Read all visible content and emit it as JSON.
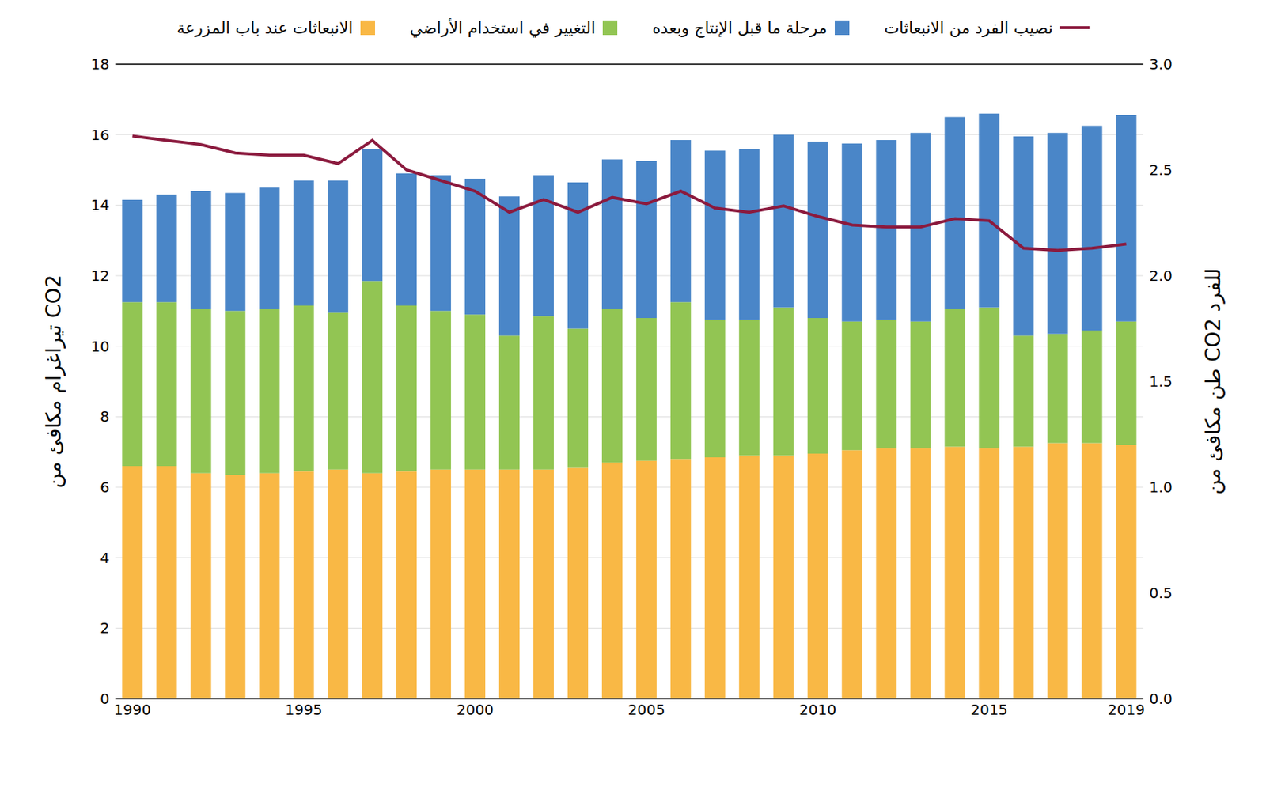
{
  "chart_data": {
    "type": "bar",
    "stacked": true,
    "grid": true,
    "legend": "top",
    "ylabel": "تيراغرام مكافئ من CO2",
    "y2label": "طن مكافئ من CO2 للفرد",
    "categories": [
      "1990",
      null,
      null,
      null,
      null,
      "1995",
      null,
      null,
      null,
      null,
      "2000",
      null,
      null,
      null,
      null,
      "2005",
      null,
      null,
      null,
      null,
      "2010",
      null,
      null,
      null,
      null,
      "2015",
      null,
      null,
      null,
      "2019"
    ],
    "ylim": [
      0,
      18
    ],
    "yticks": [
      0,
      2,
      4,
      6,
      8,
      10,
      12,
      14,
      16,
      18
    ],
    "y2lim": [
      0,
      3
    ],
    "y2ticks": [
      {
        "value": 0,
        "label": "0.0"
      },
      0.5,
      {
        "value": 1,
        "label": "1.0"
      },
      1.5,
      {
        "value": 2,
        "label": "2.0"
      },
      2.5,
      {
        "value": 3,
        "label": "3.0"
      }
    ],
    "series": [
      {
        "name": "الانبعاثات عند باب المزرعة",
        "type": "bar",
        "color": "#F9B845",
        "values": [
          6.6,
          6.6,
          6.4,
          6.35,
          6.4,
          6.45,
          6.5,
          6.4,
          6.45,
          6.5,
          6.5,
          6.5,
          6.5,
          6.55,
          6.7,
          6.75,
          6.8,
          6.85,
          6.9,
          6.9,
          6.95,
          7.05,
          7.1,
          7.1,
          7.15,
          7.1,
          7.15,
          7.25,
          7.25,
          7.2
        ]
      },
      {
        "name": "التغيير في استخدام الأراضي",
        "type": "bar",
        "color": "#92C553",
        "values": [
          4.65,
          4.65,
          4.65,
          4.65,
          4.65,
          4.7,
          4.45,
          5.45,
          4.7,
          4.5,
          4.4,
          3.8,
          4.35,
          3.95,
          4.35,
          4.05,
          4.45,
          3.9,
          3.85,
          4.2,
          3.85,
          3.65,
          3.65,
          3.6,
          3.9,
          4.0,
          3.15,
          3.1,
          3.2,
          3.5
        ]
      },
      {
        "name": "مرحلة ما قبل الإنتاج وبعده",
        "type": "bar",
        "color": "#4A86C8",
        "values": [
          2.9,
          3.05,
          3.35,
          3.35,
          3.45,
          3.55,
          3.75,
          3.75,
          3.75,
          3.85,
          3.85,
          3.95,
          4.0,
          4.15,
          4.25,
          4.45,
          4.6,
          4.8,
          4.85,
          4.9,
          5.0,
          5.05,
          5.1,
          5.35,
          5.45,
          5.5,
          5.65,
          5.7,
          5.8,
          5.85
        ]
      },
      {
        "name": "نصيب الفرد من الانبعاثات",
        "type": "line",
        "axis": "y2",
        "color": "#8B1A3E",
        "values": [
          2.66,
          2.64,
          2.62,
          2.58,
          2.57,
          2.57,
          2.53,
          2.64,
          2.5,
          2.45,
          2.4,
          2.3,
          2.36,
          2.3,
          2.37,
          2.34,
          2.4,
          2.32,
          2.3,
          2.33,
          2.28,
          2.24,
          2.23,
          2.23,
          2.27,
          2.26,
          2.13,
          2.12,
          2.13,
          2.15
        ]
      }
    ]
  }
}
